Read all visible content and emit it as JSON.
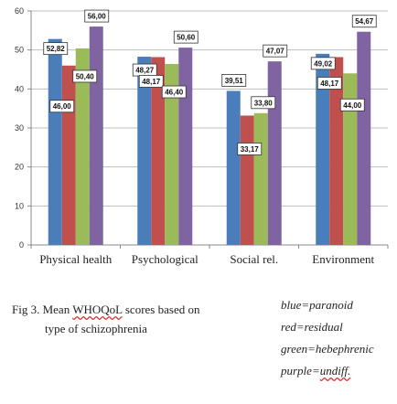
{
  "chart_data": {
    "type": "bar",
    "categories": [
      "Physical health",
      "Psychological",
      "Social rel.",
      "Environment"
    ],
    "series": [
      {
        "name": "paranoid",
        "color": "#4a7ebb",
        "values": [
          52.82,
          48.27,
          39.51,
          49.02
        ]
      },
      {
        "name": "residual",
        "color": "#c0504d",
        "values": [
          46.0,
          48.17,
          33.17,
          48.17
        ]
      },
      {
        "name": "hebephrenic",
        "color": "#9bbb59",
        "values": [
          50.4,
          46.4,
          33.8,
          44.0
        ]
      },
      {
        "name": "undiff.",
        "color": "#8064a2",
        "values": [
          56.0,
          50.6,
          47.07,
          54.67
        ]
      }
    ],
    "data_labels": [
      [
        "52,82",
        "46,00",
        "50,40",
        "56,00"
      ],
      [
        "48,27",
        "48,17",
        "46,40",
        "50,60"
      ],
      [
        "39,51",
        "33,17",
        "33,80",
        "47,07"
      ],
      [
        "49,02",
        "48,17",
        "44,00",
        "54,67"
      ]
    ],
    "ylim": [
      0,
      60
    ],
    "yticks": [
      0,
      10,
      20,
      30,
      40,
      50,
      60
    ],
    "grid": true,
    "title": "",
    "xlabel": "",
    "ylabel": ""
  },
  "caption": {
    "line1_prefix": "Fig 3. Mean ",
    "line1_acronym": "WHOQoL",
    "line1_suffix": " scores based on",
    "line2": "type of schizophrenia"
  },
  "legend": {
    "items": [
      {
        "prefix": "blue=",
        "word": "paranoid",
        "wavy": false
      },
      {
        "prefix": "red=",
        "word": "residual",
        "wavy": false
      },
      {
        "prefix": "green=",
        "word": "hebephrenic",
        "wavy": false
      },
      {
        "prefix": "purple=",
        "word": "undiff.",
        "wavy": true
      }
    ]
  }
}
